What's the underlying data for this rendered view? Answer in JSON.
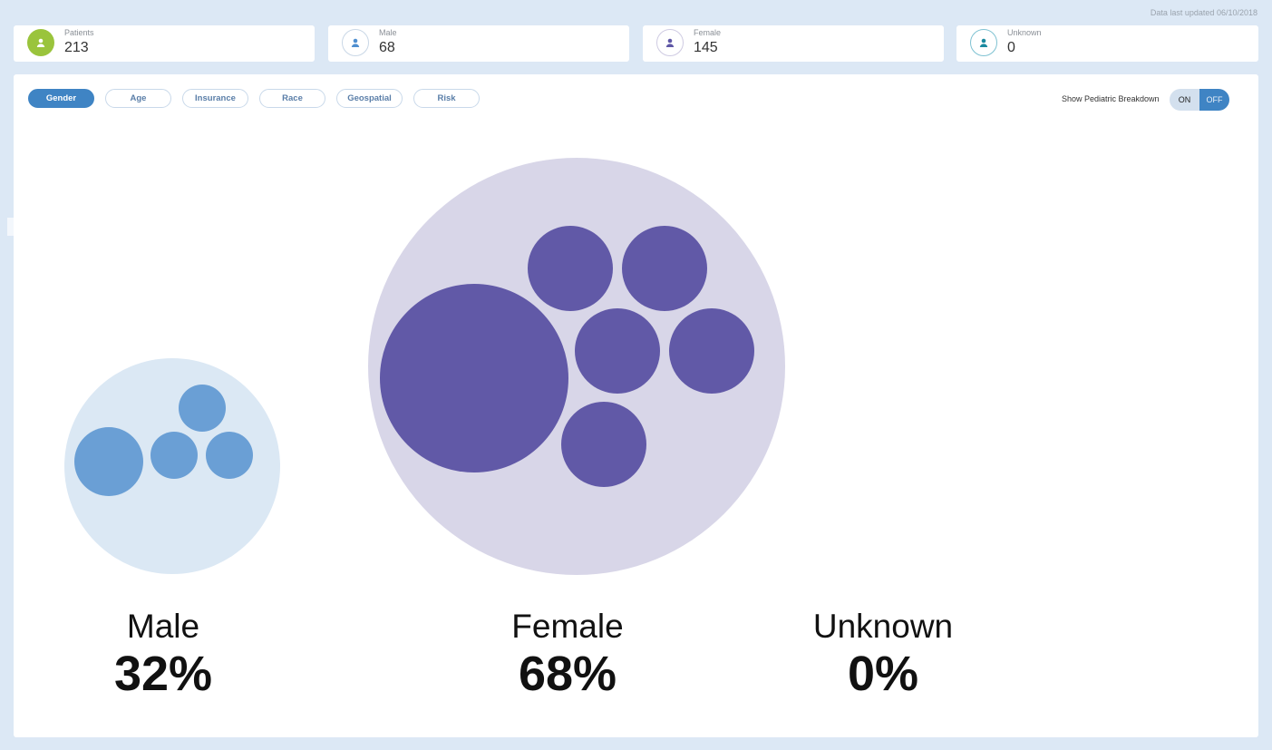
{
  "header": {
    "updated": "Data last updated 06/10/2018"
  },
  "stats": [
    {
      "label": "Patients",
      "value": "213",
      "icon": "user-icon",
      "color": "#9ac43c"
    },
    {
      "label": "Male",
      "value": "68",
      "icon": "user-icon",
      "color": "#4f8fd0"
    },
    {
      "label": "Female",
      "value": "145",
      "icon": "user-icon",
      "color": "#5f57a6"
    },
    {
      "label": "Unknown",
      "value": "0",
      "icon": "user-icon",
      "color": "#1a8aa0"
    }
  ],
  "tabs": [
    "Gender",
    "Age",
    "Insurance",
    "Race",
    "Geospatial",
    "Risk"
  ],
  "active_tab": "Gender",
  "pediatric": {
    "label": "Show Pediatric Breakdown",
    "on": "ON",
    "off": "OFF",
    "selected": "OFF"
  },
  "groups": [
    {
      "name": "Male",
      "pct": "32%",
      "bg_color": "#dbe8f4",
      "color": "#6a9fd5"
    },
    {
      "name": "Female",
      "pct": "68%",
      "bg_color": "#d8d6e8",
      "color": "#6159a7"
    },
    {
      "name": "Unknown",
      "pct": "0%",
      "bg_color": "#ffffff",
      "color": "#ffffff"
    }
  ]
}
